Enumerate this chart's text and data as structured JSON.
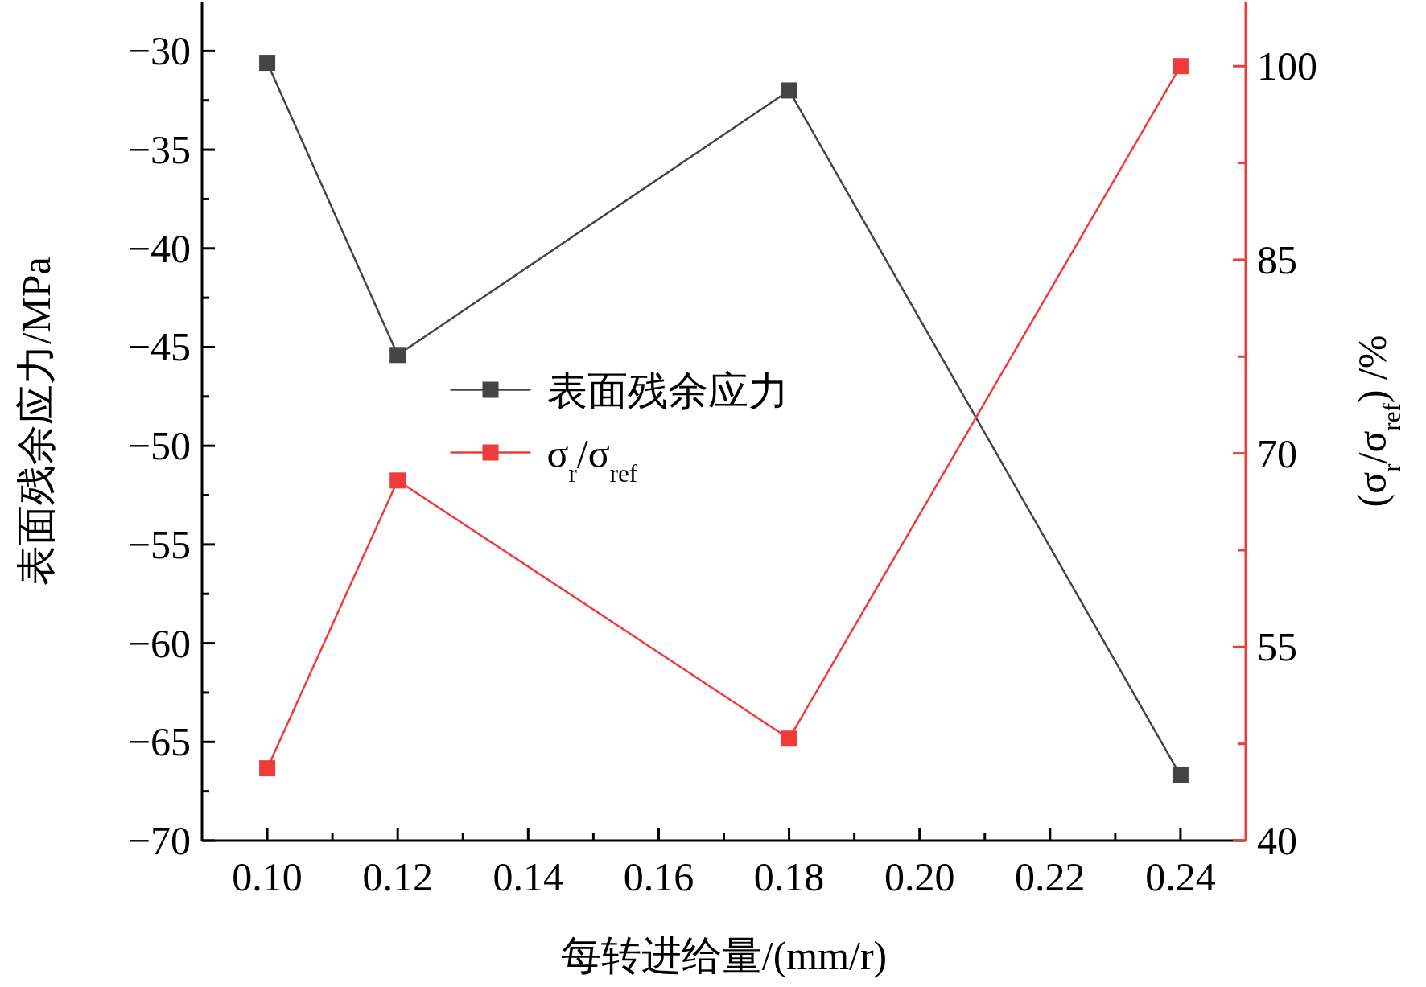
{
  "chart_data": {
    "type": "line",
    "xlabel": "每转进给量/(mm/r)",
    "ylabel": "表面残余应力/MPa",
    "y2label": "(σ$_{r}$/σ$_{ref}$) /%",
    "x": [
      0.1,
      0.12,
      0.18,
      0.24
    ],
    "series": [
      {
        "name": "表面残余应力",
        "color": "#444444",
        "values": [
          -30.6,
          -45.4,
          -32.0,
          -66.7
        ]
      },
      {
        "name": "σ$_{r}$/σ$_{ref}$",
        "color": "#ef3b3b",
        "axis": "y2",
        "values": [
          45.6,
          67.9,
          47.9,
          100
        ]
      }
    ],
    "marker": "square",
    "legend": "center",
    "xlim": [
      0.09,
      0.25
    ],
    "xticks": [
      {
        "value": 0.1,
        "label": "0.10"
      },
      {
        "value": 0.11,
        "label": null
      },
      {
        "value": 0.12,
        "label": "0.12"
      },
      {
        "value": 0.13,
        "label": null
      },
      {
        "value": 0.14,
        "label": "0.14"
      },
      {
        "value": 0.15,
        "label": null
      },
      {
        "value": 0.16,
        "label": "0.16"
      },
      {
        "value": 0.17,
        "label": null
      },
      {
        "value": 0.18,
        "label": "0.18"
      },
      {
        "value": 0.19,
        "label": null
      },
      {
        "value": 0.2,
        "label": "0.20"
      },
      {
        "value": 0.21,
        "label": null
      },
      {
        "value": 0.22,
        "label": "0.22"
      },
      {
        "value": 0.23,
        "label": null
      },
      {
        "value": 0.24,
        "label": "0.24"
      }
    ],
    "ylim": [
      -70,
      -27.5
    ],
    "yticks": [
      -70,
      {
        "value": -67.5,
        "label": null
      },
      -65,
      {
        "value": -62.5,
        "label": null
      },
      -60,
      {
        "value": -57.5,
        "label": null
      },
      -55,
      {
        "value": -52.5,
        "label": null
      },
      -50,
      {
        "value": -47.5,
        "label": null
      },
      -45,
      {
        "value": -42.5,
        "label": null
      },
      -40,
      {
        "value": -37.5,
        "label": null
      },
      -35,
      {
        "value": -32.5,
        "label": null
      },
      -30
    ],
    "y2lim": [
      40,
      105
    ],
    "y2ticks": [
      40,
      {
        "value": 47.5,
        "label": null
      },
      55,
      {
        "value": 62.5,
        "label": null
      },
      70,
      {
        "value": 77.5,
        "label": null
      },
      85,
      {
        "value": 92.5,
        "label": null
      },
      100
    ]
  }
}
